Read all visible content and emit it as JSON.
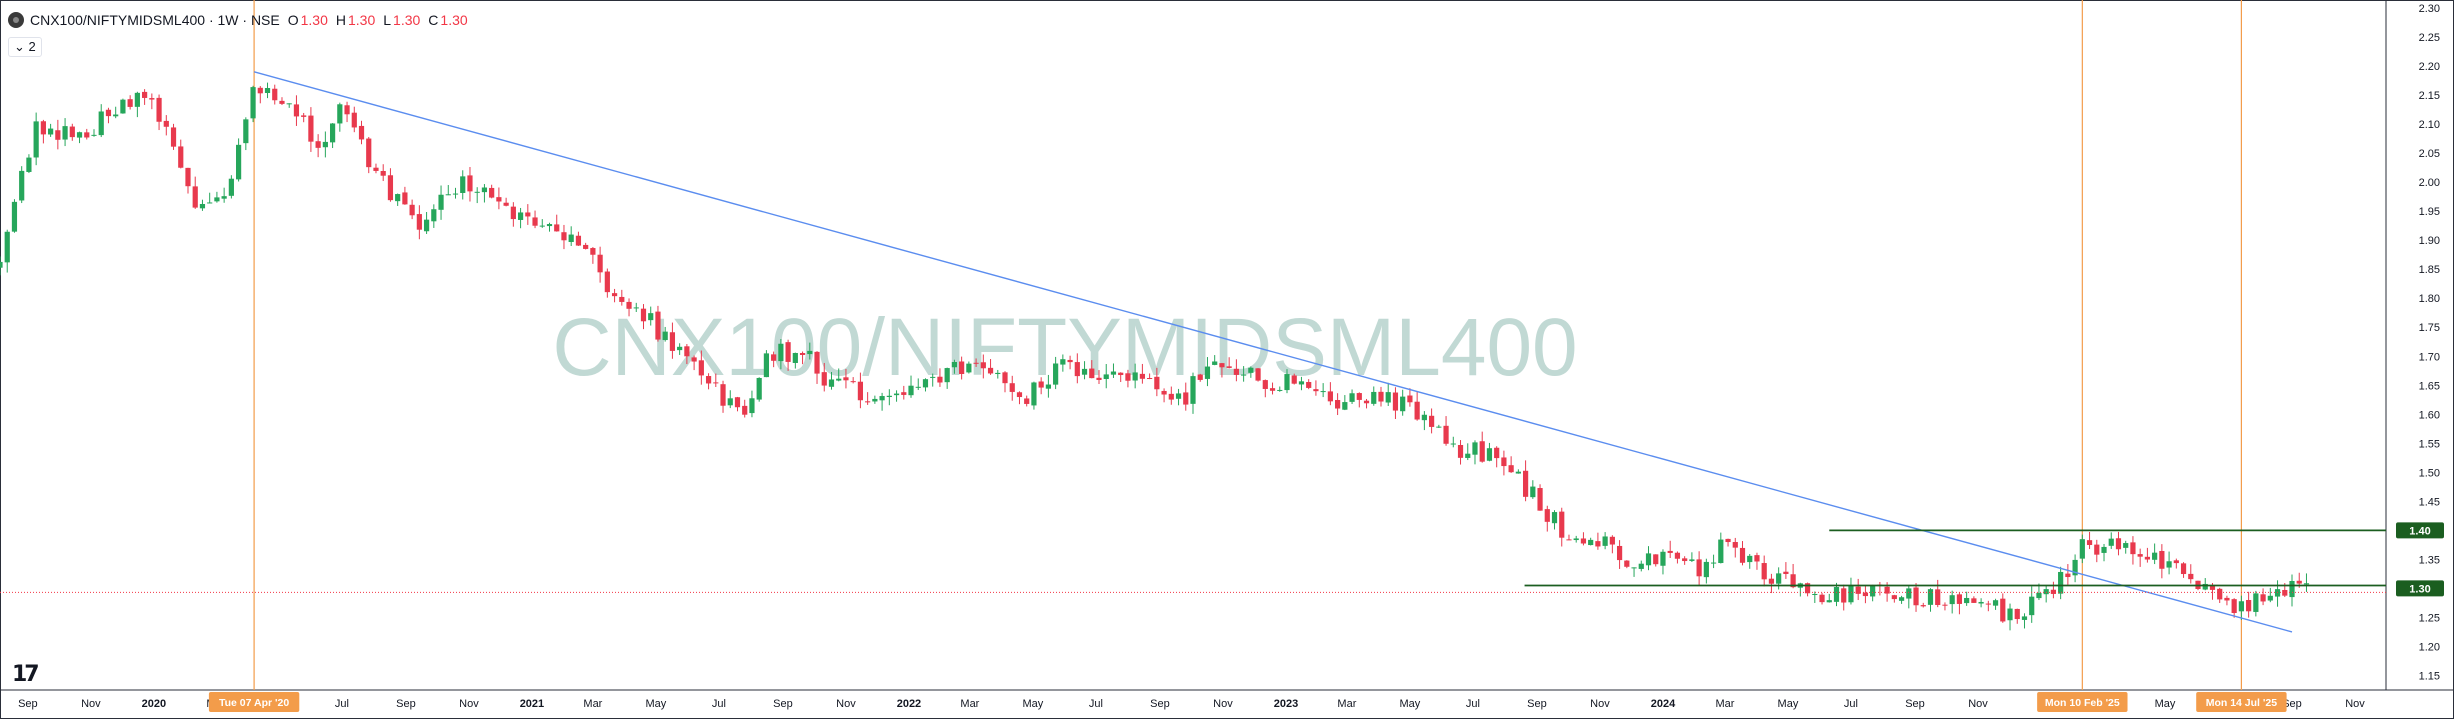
{
  "legend": {
    "symbol": "CNX100/NIFTYMIDSML400 · 1W · NSE",
    "o_label": "O",
    "o_value": "1.30",
    "h_label": "H",
    "h_value": "1.30",
    "l_label": "L",
    "l_value": "1.30",
    "c_label": "C",
    "c_value": "1.30",
    "indicator_toggle": "⌄ 2"
  },
  "watermark": "CNX100/NIFTYMIDSML400",
  "logo_icon": "tradingview-logo-icon",
  "colors": {
    "up": "#26a65b",
    "down": "#e8394d",
    "trendline": "#5b8def",
    "vline": "#f39c4a",
    "hline": "#1b5e20",
    "last_price_line": "#f23645",
    "watermark": "#b7d3cd",
    "axis_text": "#131722"
  },
  "chart_data": {
    "type": "candlestick",
    "interval": "1W",
    "y_axis": {
      "range": [
        1.125,
        2.3
      ],
      "ticks": [
        "2.30",
        "2.25",
        "2.20",
        "2.15",
        "2.10",
        "2.05",
        "2.00",
        "1.95",
        "1.90",
        "1.85",
        "1.80",
        "1.75",
        "1.70",
        "1.65",
        "1.60",
        "1.55",
        "1.50",
        "1.45",
        "1.40",
        "1.35",
        "1.30",
        "1.25",
        "1.20",
        "1.15"
      ],
      "price_labels": [
        {
          "text": "1.40",
          "value": 1.4
        },
        {
          "text": "1.30",
          "value": 1.3
        }
      ]
    },
    "x_axis": {
      "range": [
        "2019-08-05",
        "2025-12-01"
      ],
      "ticks": [
        {
          "label": "Sep",
          "date": "2019-09-01"
        },
        {
          "label": "Nov",
          "date": "2019-11-01"
        },
        {
          "label": "2020",
          "date": "2020-01-01",
          "bold": true
        },
        {
          "label": "Mar",
          "date": "2020-03-01"
        },
        {
          "label": "Jul",
          "date": "2020-07-01"
        },
        {
          "label": "Sep",
          "date": "2020-09-01"
        },
        {
          "label": "Nov",
          "date": "2020-11-01"
        },
        {
          "label": "2021",
          "date": "2021-01-01",
          "bold": true
        },
        {
          "label": "Mar",
          "date": "2021-03-01"
        },
        {
          "label": "May",
          "date": "2021-05-01"
        },
        {
          "label": "Jul",
          "date": "2021-07-01"
        },
        {
          "label": "Sep",
          "date": "2021-09-01"
        },
        {
          "label": "Nov",
          "date": "2021-11-01"
        },
        {
          "label": "2022",
          "date": "2022-01-01",
          "bold": true
        },
        {
          "label": "Mar",
          "date": "2022-03-01"
        },
        {
          "label": "May",
          "date": "2022-05-01"
        },
        {
          "label": "Jul",
          "date": "2022-07-01"
        },
        {
          "label": "Sep",
          "date": "2022-09-01"
        },
        {
          "label": "Nov",
          "date": "2022-11-01"
        },
        {
          "label": "2023",
          "date": "2023-01-01",
          "bold": true
        },
        {
          "label": "Mar",
          "date": "2023-03-01"
        },
        {
          "label": "May",
          "date": "2023-05-01"
        },
        {
          "label": "Jul",
          "date": "2023-07-01"
        },
        {
          "label": "Sep",
          "date": "2023-09-01"
        },
        {
          "label": "Nov",
          "date": "2023-11-01"
        },
        {
          "label": "2024",
          "date": "2024-01-01",
          "bold": true
        },
        {
          "label": "Mar",
          "date": "2024-03-01"
        },
        {
          "label": "May",
          "date": "2024-05-01"
        },
        {
          "label": "Jul",
          "date": "2024-07-01"
        },
        {
          "label": "Sep",
          "date": "2024-09-01"
        },
        {
          "label": "Nov",
          "date": "2024-11-01"
        },
        {
          "label": "May",
          "date": "2025-05-01"
        },
        {
          "label": "Sep",
          "date": "2025-09-01"
        },
        {
          "label": "Nov",
          "date": "2025-11-01"
        }
      ],
      "date_markers": [
        {
          "label": "Tue 07 Apr '20",
          "date": "2020-04-07"
        },
        {
          "label": "Mon 10 Feb '25",
          "date": "2025-02-10"
        },
        {
          "label": "Mon 14 Jul '25",
          "date": "2025-07-14"
        }
      ]
    },
    "price_path": [
      [
        "2019-08-05",
        1.88
      ],
      [
        "2019-09-10",
        2.1
      ],
      [
        "2019-10-20",
        2.08
      ],
      [
        "2019-11-25",
        2.12
      ],
      [
        "2019-12-20",
        2.16
      ],
      [
        "2020-01-20",
        2.06
      ],
      [
        "2020-02-10",
        1.96
      ],
      [
        "2020-03-10",
        1.98
      ],
      [
        "2020-04-07",
        2.17
      ],
      [
        "2020-05-10",
        2.13
      ],
      [
        "2020-06-10",
        2.06
      ],
      [
        "2020-06-30",
        2.15
      ],
      [
        "2020-08-01",
        2.02
      ],
      [
        "2020-09-15",
        1.92
      ],
      [
        "2020-10-25",
        2.01
      ],
      [
        "2020-12-01",
        1.95
      ],
      [
        "2021-01-10",
        1.93
      ],
      [
        "2021-02-20",
        1.9
      ],
      [
        "2021-03-20",
        1.8
      ],
      [
        "2021-04-25",
        1.76
      ],
      [
        "2021-06-10",
        1.68
      ],
      [
        "2021-07-10",
        1.62
      ],
      [
        "2021-07-25",
        1.6
      ],
      [
        "2021-08-20",
        1.71
      ],
      [
        "2021-09-25",
        1.7
      ],
      [
        "2021-10-15",
        1.65
      ],
      [
        "2021-12-01",
        1.63
      ],
      [
        "2022-01-10",
        1.64
      ],
      [
        "2022-02-15",
        1.68
      ],
      [
        "2022-03-25",
        1.68
      ],
      [
        "2022-04-25",
        1.63
      ],
      [
        "2022-06-01",
        1.69
      ],
      [
        "2022-07-15",
        1.66
      ],
      [
        "2022-08-20",
        1.66
      ],
      [
        "2022-09-25",
        1.63
      ],
      [
        "2022-10-25",
        1.7
      ],
      [
        "2022-12-10",
        1.66
      ],
      [
        "2023-01-20",
        1.65
      ],
      [
        "2023-02-25",
        1.62
      ],
      [
        "2023-03-25",
        1.64
      ],
      [
        "2023-05-01",
        1.61
      ],
      [
        "2023-06-15",
        1.54
      ],
      [
        "2023-07-25",
        1.53
      ],
      [
        "2023-09-01",
        1.45
      ],
      [
        "2023-09-25",
        1.4
      ],
      [
        "2023-11-01",
        1.38
      ],
      [
        "2023-12-01",
        1.35
      ],
      [
        "2024-01-10",
        1.36
      ],
      [
        "2024-02-10",
        1.33
      ],
      [
        "2024-03-01",
        1.4
      ],
      [
        "2024-04-01",
        1.33
      ],
      [
        "2024-05-01",
        1.32
      ],
      [
        "2024-06-01",
        1.29
      ],
      [
        "2024-07-10",
        1.29
      ],
      [
        "2024-08-15",
        1.29
      ],
      [
        "2024-09-25",
        1.28
      ],
      [
        "2024-11-01",
        1.29
      ],
      [
        "2024-12-01",
        1.25
      ],
      [
        "2025-01-05",
        1.28
      ],
      [
        "2025-02-10",
        1.37
      ],
      [
        "2025-03-10",
        1.38
      ],
      [
        "2025-04-10",
        1.36
      ],
      [
        "2025-05-15",
        1.34
      ],
      [
        "2025-06-20",
        1.28
      ],
      [
        "2025-07-14",
        1.27
      ],
      [
        "2025-08-20",
        1.3
      ],
      [
        "2025-09-20",
        1.3
      ]
    ],
    "trendlines": [
      {
        "from": {
          "date": "2020-04-07",
          "price": 2.19
        },
        "to": {
          "date": "2025-09-01",
          "price": 1.225
        }
      }
    ],
    "horizontal_lines": [
      {
        "price": 1.4,
        "from": "2024-06-10"
      },
      {
        "price": 1.305,
        "from": "2023-08-20"
      }
    ],
    "last_price": 1.3,
    "grid": false
  }
}
